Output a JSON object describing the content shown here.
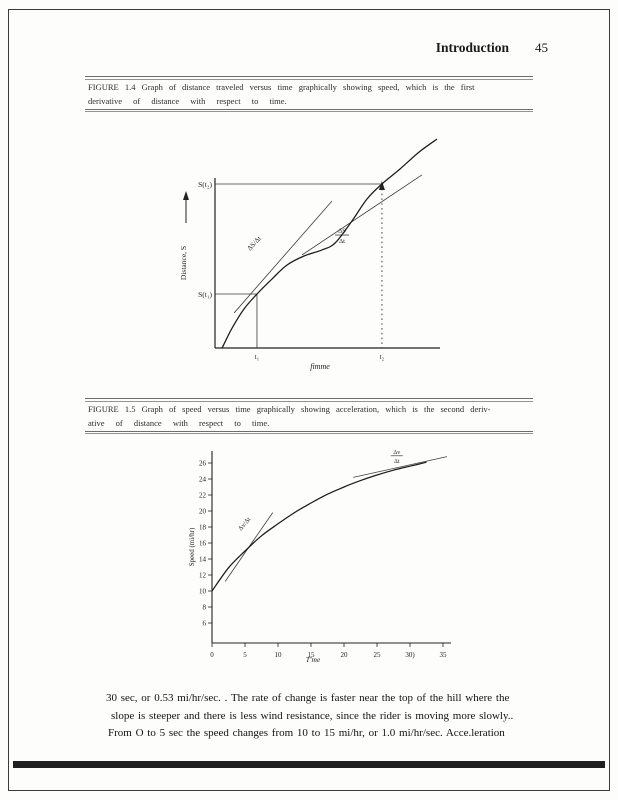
{
  "header": {
    "title": "Introduction",
    "page_number": "45"
  },
  "figure14_caption": {
    "line1": "FIGURE  1.4   Graph of  distance  traveled  versus  time  graphically  showing  speed,  which  is the first",
    "line2": "derivative   of distance   with  respect   to time."
  },
  "figure15_caption": {
    "line1": "FIGURE  1.5   Graph of  speed  versus  time  graphically  showing  acceleration,  which  is the second  deriv-",
    "line2": "ative  of distance   with  respect   to time."
  },
  "body_text": {
    "line1": "30 sec, or  0.53  mi/hr/sec.  . The rate of change is faster near the top of the hill where the",
    "line2": "slope is  steeper  and there  is less wind  resistance,  since  the rider is moving  more slowly..",
    "line3": "From  O to  5 sec the speed  changes  from 10  to 15  mi/hr,  or  1.0 mi/hr/sec.    Acce.leration"
  },
  "chart_data": [
    {
      "id": "fig14",
      "type": "line",
      "title": "Figure 1.4 distance vs time",
      "xlabel": "fimme",
      "ylabel": "Distance, S",
      "x_tick_labels": [
        "t₁",
        "t₂"
      ],
      "x_tick_pos": [
        0.189,
        0.752
      ],
      "y_guide_labels": [
        "S(t₁)",
        "S(t₂)"
      ],
      "y_guide_pos": [
        0.257,
        0.781
      ],
      "curve_points": [
        [
          0.032,
          0.0
        ],
        [
          0.077,
          0.095
        ],
        [
          0.131,
          0.186
        ],
        [
          0.189,
          0.257
        ],
        [
          0.257,
          0.329
        ],
        [
          0.324,
          0.395
        ],
        [
          0.401,
          0.438
        ],
        [
          0.482,
          0.467
        ],
        [
          0.541,
          0.5
        ],
        [
          0.617,
          0.605
        ],
        [
          0.685,
          0.71
        ],
        [
          0.752,
          0.781
        ],
        [
          0.833,
          0.852
        ],
        [
          0.919,
          0.933
        ],
        [
          1.0,
          0.995
        ]
      ],
      "tangent_lines": [
        [
          [
            0.086,
            0.167
          ],
          [
            0.527,
            0.7
          ]
        ],
        [
          [
            0.392,
            0.443
          ],
          [
            0.932,
            0.824
          ]
        ]
      ],
      "tangent_label": "ΔS/Δt",
      "tangent_label_pos": [
        0.158,
        0.462
      ],
      "fraction_label": {
        "top": "ΔS",
        "bottom": "Δt"
      },
      "fraction_pos": [
        0.572,
        0.538
      ],
      "grid": false,
      "legend": "none"
    },
    {
      "id": "fig15",
      "type": "line",
      "title": "Figure 1.5 speed vs time",
      "xlabel": "T'me",
      "ylabel": "Speed (mi/hr)",
      "xlim": [
        0,
        35
      ],
      "x_ticks": [
        0,
        5,
        10,
        15,
        20,
        25,
        30,
        35
      ],
      "x_tick_labels": [
        "0",
        "5",
        "10",
        "15",
        "20",
        "25",
        "30)",
        "35"
      ],
      "y_ticks": [
        26,
        24,
        22,
        20,
        18,
        16,
        14,
        12,
        10,
        8,
        6
      ],
      "x": [
        0,
        2.5,
        5,
        7.5,
        10,
        12.5,
        15,
        17.5,
        20,
        22.5,
        25,
        27.5,
        30,
        32.5
      ],
      "values": [
        10,
        12.9,
        15,
        16.9,
        18.4,
        19.8,
        21,
        22.1,
        23,
        23.8,
        24.5,
        25.1,
        25.6,
        26.1
      ],
      "tangent_lines": [
        [
          [
            2,
            11.2
          ],
          [
            9.2,
            19.8
          ]
        ],
        [
          [
            21.4,
            24.2
          ],
          [
            35.6,
            26.8
          ]
        ]
      ],
      "tangent_label": "Δv/Δt",
      "tangent_label_pos": [
        4.4,
        17.5
      ],
      "fraction_label": {
        "top": "Δv",
        "bottom": "Δt"
      },
      "fraction_pos": [
        28,
        26.9
      ],
      "grid": false,
      "legend": "none"
    }
  ]
}
